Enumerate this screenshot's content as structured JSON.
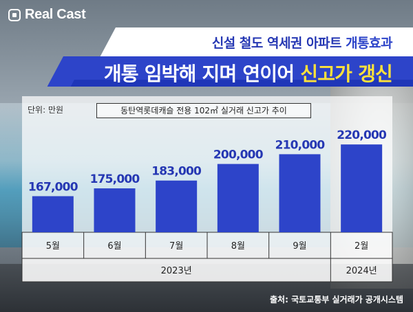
{
  "brand": {
    "name": "Real Cast"
  },
  "headline": {
    "line1_pre": "신설 철도 역세권 아파트 ",
    "line1_hl": "개통효과",
    "line2_pre": "개통 임박해 지며 연이어 ",
    "line2_hl": "신고가 갱신"
  },
  "colors": {
    "bar": "#2d44c9",
    "stripe": "#2d44c9",
    "highlight": "#ffe23a"
  },
  "unit_label": "단위: 만원",
  "source": "출처: 국토교통부 실거래가 공개시스템",
  "chart_data": {
    "type": "bar",
    "title": "동탄역롯데캐슬 전용 102㎡ 실거래 신고가 추이",
    "categories": [
      "5월",
      "6월",
      "7월",
      "8월",
      "9월",
      "2월"
    ],
    "values": [
      167000,
      175000,
      183000,
      200000,
      210000,
      220000
    ],
    "value_labels": [
      "167,000",
      "175,000",
      "183,000",
      "200,000",
      "210,000",
      "220,000"
    ],
    "year_groups": [
      {
        "label": "2023년",
        "categories": [
          "5월",
          "6월",
          "7월",
          "8월",
          "9월"
        ]
      },
      {
        "label": "2024년",
        "categories": [
          "2월"
        ]
      }
    ],
    "ylim": [
      130000,
      230000
    ],
    "grid": false
  }
}
